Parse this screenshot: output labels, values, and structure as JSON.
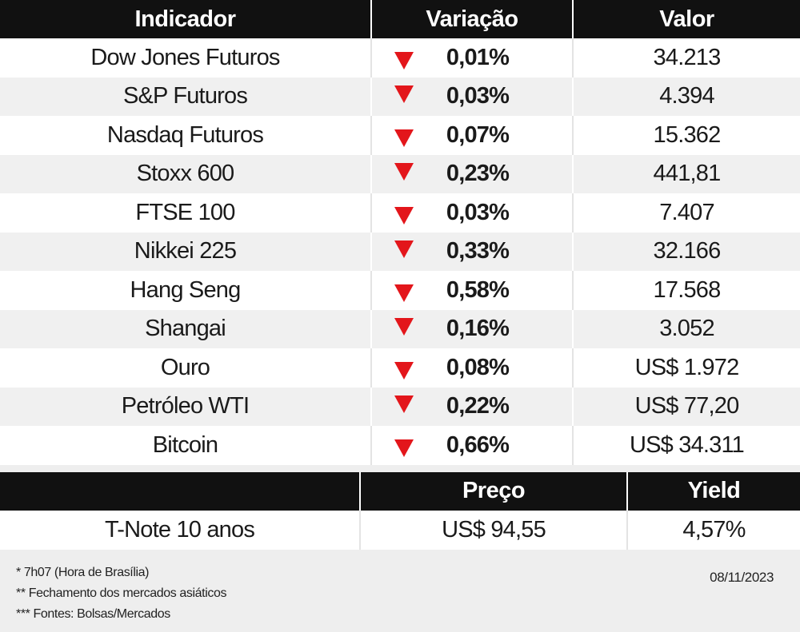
{
  "table": {
    "headers": [
      "Indicador",
      "Variação",
      "Valor"
    ],
    "rows": [
      {
        "name": "Dow Jones Futuros",
        "change": "0,01%",
        "value": "34.213",
        "direction": "down"
      },
      {
        "name": "S&P Futuros",
        "change": "0,03%",
        "value": "4.394",
        "direction": "down"
      },
      {
        "name": "Nasdaq Futuros",
        "change": "0,07%",
        "value": "15.362",
        "direction": "down"
      },
      {
        "name": "Stoxx 600",
        "change": "0,23%",
        "value": "441,81",
        "direction": "down"
      },
      {
        "name": "FTSE 100",
        "change": "0,03%",
        "value": "7.407",
        "direction": "down"
      },
      {
        "name": "Nikkei 225",
        "change": "0,33%",
        "value": "32.166",
        "direction": "down"
      },
      {
        "name": "Hang Seng",
        "change": "0,58%",
        "value": "17.568",
        "direction": "down"
      },
      {
        "name": "Shangai",
        "change": "0,16%",
        "value": "3.052",
        "direction": "down"
      },
      {
        "name": "Ouro",
        "change": "0,08%",
        "value": "US$ 1.972",
        "direction": "down"
      },
      {
        "name": "Petróleo WTI",
        "change": "0,22%",
        "value": "US$ 77,20",
        "direction": "down"
      },
      {
        "name": "Bitcoin",
        "change": "0,66%",
        "value": "US$ 34.311",
        "direction": "down"
      }
    ]
  },
  "bond_table": {
    "headers": [
      "",
      "Preço",
      "Yield"
    ],
    "row": {
      "name": "T-Note 10 anos",
      "price": "US$ 94,55",
      "yield": "4,57%"
    }
  },
  "footer": {
    "notes": [
      "* 7h07 (Hora de Brasília)",
      "** Fechamento dos mercados asiáticos",
      "*** Fontes: Bolsas/Mercados"
    ],
    "date": "08/11/2023"
  },
  "colors": {
    "header_bg": "#111111",
    "down_arrow": "#e3161b",
    "row_alt": "#f0f0f0"
  },
  "icons": {
    "down": "down-triangle-icon"
  }
}
